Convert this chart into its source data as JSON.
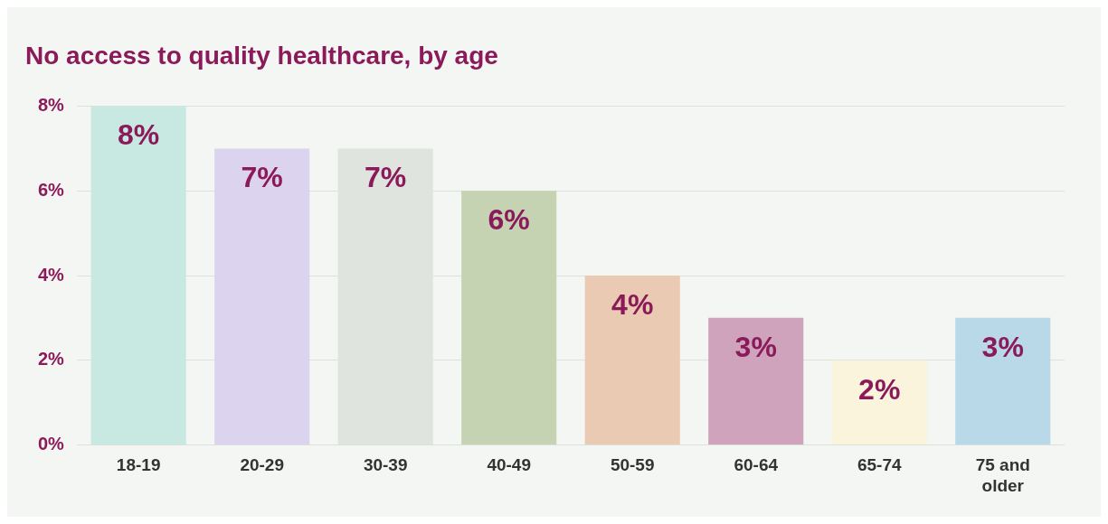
{
  "chart_data": {
    "type": "bar",
    "title": "No access to quality healthcare, by age",
    "categories": [
      "18-19",
      "20-29",
      "30-39",
      "40-49",
      "50-59",
      "60-64",
      "65-74",
      "75 and older"
    ],
    "values": [
      8,
      7,
      7,
      6,
      4,
      3,
      2,
      3
    ],
    "colors": [
      "#c8e9e2",
      "#dcd4ef",
      "#e0e4df",
      "#c5d3b3",
      "#ebcab3",
      "#d0a3bc",
      "#faf4dd",
      "#b9d8e8"
    ],
    "value_labels": [
      "8%",
      "7%",
      "7%",
      "6%",
      "4%",
      "3%",
      "2%",
      "3%"
    ],
    "ylim": [
      0,
      8
    ],
    "yticks": [
      {
        "value": 0,
        "label": "0%"
      },
      {
        "value": 2,
        "label": "2%"
      },
      {
        "value": 4,
        "label": "4%"
      },
      {
        "value": 6,
        "label": "6%"
      },
      {
        "value": 8,
        "label": "8%"
      }
    ],
    "grid": "y"
  }
}
